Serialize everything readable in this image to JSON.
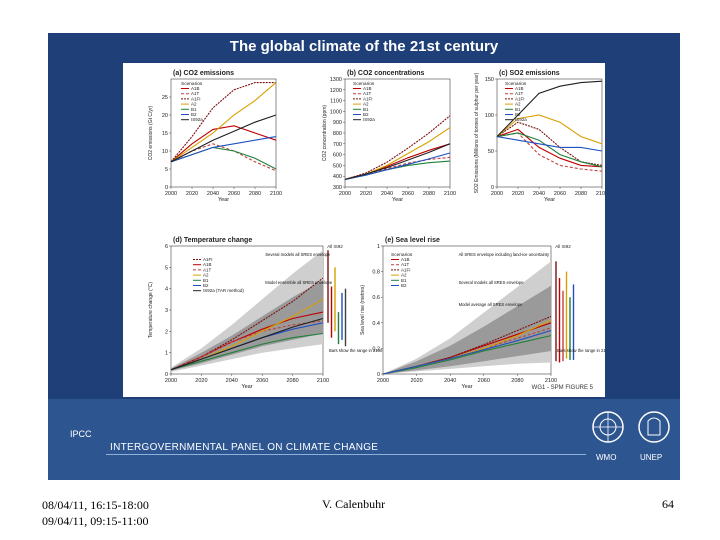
{
  "slide": {
    "title": "The global climate of the 21st century",
    "figure_ref": "WG1 - SPM FIGURE 5",
    "org_abbr": "IPCC",
    "org_name": "INTERGOVERNMENTAL PANEL ON CLIMATE CHANGE",
    "logo_left": "WMO",
    "logo_right": "UNEP"
  },
  "footer": {
    "dates_line1": "08/04/11, 16:15-18:00",
    "dates_line2": "09/04/11, 09:15-11:00",
    "author": "V. Calenbuhr",
    "page_number": "64"
  },
  "colors": {
    "A1B": "#c00000",
    "A1T": "#c04040",
    "A1FI": "#7a1010",
    "A2": "#d8a000",
    "B1": "#20803a",
    "B2": "#2050c0",
    "IS92a": "#202020"
  },
  "chart_data": [
    {
      "type": "line",
      "title": "(a) CO2 emissions",
      "ylabel": "CO2 emissions (Gt C/yr)",
      "xlabel": "Year",
      "ylim": [
        0,
        30
      ],
      "yticks": [
        0,
        5,
        10,
        15,
        20,
        25
      ],
      "x": [
        2000,
        2020,
        2040,
        2060,
        2080,
        2100
      ],
      "legend_title": "Scenarios",
      "series": [
        {
          "name": "A1B",
          "values": [
            7,
            12,
            16,
            17,
            15,
            13
          ],
          "color": "#c00000"
        },
        {
          "name": "A1T",
          "values": [
            7,
            10,
            12,
            10,
            7,
            4.5
          ],
          "color": "#c04040",
          "dash": "3,2"
        },
        {
          "name": "A1FI",
          "values": [
            7,
            14,
            22,
            27,
            29,
            29
          ],
          "color": "#7a1010",
          "dash": "2,1"
        },
        {
          "name": "A2",
          "values": [
            7,
            11,
            15,
            20,
            24,
            29
          ],
          "color": "#d8a000"
        },
        {
          "name": "B1",
          "values": [
            7,
            9,
            11,
            10,
            8,
            5
          ],
          "color": "#20803a"
        },
        {
          "name": "B2",
          "values": [
            7,
            9,
            11,
            12,
            13,
            14
          ],
          "color": "#2050c0"
        },
        {
          "name": "IS92a",
          "values": [
            7,
            10,
            13,
            15.5,
            18,
            20
          ],
          "color": "#202020"
        }
      ]
    },
    {
      "type": "line",
      "title": "(b) CO2 concentrations",
      "ylabel": "CO2 concentration (ppm)",
      "xlabel": "Year",
      "ylim": [
        300,
        1300
      ],
      "yticks": [
        300,
        400,
        500,
        600,
        700,
        800,
        900,
        1000,
        1100,
        1200,
        1300
      ],
      "x": [
        2000,
        2020,
        2040,
        2060,
        2080,
        2100
      ],
      "legend_title": "Scenarios",
      "series": [
        {
          "name": "A1B",
          "values": [
            370,
            420,
            490,
            570,
            640,
            700
          ],
          "color": "#c00000"
        },
        {
          "name": "A1T",
          "values": [
            370,
            415,
            470,
            520,
            555,
            575
          ],
          "color": "#c04040",
          "dash": "3,2"
        },
        {
          "name": "A1FI",
          "values": [
            370,
            430,
            530,
            660,
            800,
            960
          ],
          "color": "#7a1010",
          "dash": "2,1"
        },
        {
          "name": "A2",
          "values": [
            370,
            420,
            500,
            610,
            720,
            850
          ],
          "color": "#d8a000"
        },
        {
          "name": "B1",
          "values": [
            370,
            410,
            460,
            500,
            525,
            540
          ],
          "color": "#20803a"
        },
        {
          "name": "B2",
          "values": [
            370,
            410,
            460,
            510,
            560,
            615
          ],
          "color": "#2050c0"
        },
        {
          "name": "IS92a",
          "values": [
            370,
            420,
            480,
            550,
            620,
            700
          ],
          "color": "#202020"
        }
      ]
    },
    {
      "type": "line",
      "title": "(c) SO2 emissions",
      "ylabel": "SO2 Emissions (Millions of tonnes of sulphur per year)",
      "xlabel": "Year",
      "ylim": [
        0,
        150
      ],
      "yticks": [
        0,
        50,
        100,
        150
      ],
      "x": [
        2000,
        2020,
        2040,
        2060,
        2080,
        2100
      ],
      "legend_title": "Scenarios",
      "series": [
        {
          "name": "A1B",
          "values": [
            70,
            80,
            55,
            40,
            30,
            28
          ],
          "color": "#c00000"
        },
        {
          "name": "A1T",
          "values": [
            70,
            75,
            45,
            30,
            25,
            22
          ],
          "color": "#c04040",
          "dash": "3,2"
        },
        {
          "name": "A1FI",
          "values": [
            70,
            90,
            80,
            55,
            35,
            30
          ],
          "color": "#7a1010",
          "dash": "2,1"
        },
        {
          "name": "A2",
          "values": [
            70,
            95,
            100,
            90,
            70,
            60
          ],
          "color": "#d8a000"
        },
        {
          "name": "B1",
          "values": [
            70,
            75,
            65,
            45,
            35,
            28
          ],
          "color": "#20803a"
        },
        {
          "name": "B2",
          "values": [
            70,
            65,
            60,
            55,
            55,
            50
          ],
          "color": "#2050c0"
        },
        {
          "name": "IS92a",
          "values": [
            70,
            100,
            130,
            140,
            145,
            147
          ],
          "color": "#202020"
        }
      ]
    },
    {
      "type": "line",
      "title": "(d) Temperature change",
      "ylabel": "Temperature change (°C)",
      "xlabel": "Year",
      "ylim": [
        0,
        6
      ],
      "yticks": [
        0,
        1,
        2,
        3,
        4,
        5,
        6
      ],
      "x": [
        2000,
        2020,
        2040,
        2060,
        2080,
        2100
      ],
      "legend_title": "",
      "series": [
        {
          "name": "A1FI",
          "values": [
            0.2,
            0.8,
            1.6,
            2.5,
            3.4,
            4.5
          ],
          "color": "#7a1010",
          "dash": "2,1"
        },
        {
          "name": "A1B",
          "values": [
            0.2,
            0.8,
            1.5,
            2.1,
            2.6,
            2.9
          ],
          "color": "#c00000"
        },
        {
          "name": "A1T",
          "values": [
            0.2,
            0.8,
            1.5,
            2.0,
            2.3,
            2.5
          ],
          "color": "#c04040",
          "dash": "3,2"
        },
        {
          "name": "A2",
          "values": [
            0.2,
            0.7,
            1.3,
            2.0,
            2.7,
            3.5
          ],
          "color": "#d8a000"
        },
        {
          "name": "B1",
          "values": [
            0.2,
            0.6,
            1.0,
            1.4,
            1.7,
            1.9
          ],
          "color": "#20803a"
        },
        {
          "name": "B2",
          "values": [
            0.2,
            0.7,
            1.2,
            1.7,
            2.1,
            2.4
          ],
          "color": "#2050c0"
        },
        {
          "name": "IS92a (TAR method)",
          "values": [
            0.2,
            0.7,
            1.2,
            1.7,
            2.2,
            2.6
          ],
          "color": "#202020"
        }
      ],
      "envelope_outer": {
        "lower": [
          0.1,
          0.4,
          0.7,
          1.0,
          1.2,
          1.4
        ],
        "upper": [
          0.3,
          1.2,
          2.3,
          3.5,
          4.7,
          5.8
        ]
      },
      "envelope_inner": {
        "lower": [
          0.15,
          0.5,
          0.9,
          1.3,
          1.6,
          1.9
        ],
        "upper": [
          0.25,
          1.0,
          1.8,
          2.7,
          3.6,
          4.4
        ]
      },
      "annotations": [
        "Several models all SRES envelope",
        "Model ensemble all SRES envelope",
        "Bars show the range in 2100 produced by several models"
      ],
      "range_bars": [
        {
          "color": "#7a1010",
          "low": 2.4,
          "high": 5.8
        },
        {
          "color": "#c00000",
          "low": 1.7,
          "high": 4.1
        },
        {
          "color": "#d8a000",
          "low": 2.0,
          "high": 5.0
        },
        {
          "color": "#20803a",
          "low": 1.4,
          "high": 2.9
        },
        {
          "color": "#2050c0",
          "low": 1.6,
          "high": 3.8
        },
        {
          "color": "#404040",
          "low": 1.3,
          "high": 4.0
        }
      ],
      "bar_label": "All IS92"
    },
    {
      "type": "line",
      "title": "(e) Sea level rise",
      "ylabel": "Sea level rise (metres)",
      "xlabel": "Year",
      "ylim": [
        0,
        1.0
      ],
      "yticks": [
        0.0,
        0.2,
        0.4,
        0.6,
        0.8,
        1.0
      ],
      "x": [
        2000,
        2020,
        2040,
        2060,
        2080,
        2100
      ],
      "legend_title": "Scenarios",
      "series": [
        {
          "name": "A1B",
          "values": [
            0.0,
            0.06,
            0.13,
            0.22,
            0.31,
            0.4
          ],
          "color": "#c00000"
        },
        {
          "name": "A1T",
          "values": [
            0.0,
            0.06,
            0.12,
            0.2,
            0.28,
            0.36
          ],
          "color": "#c04040",
          "dash": "3,2"
        },
        {
          "name": "A1FI",
          "values": [
            0.0,
            0.06,
            0.13,
            0.23,
            0.34,
            0.45
          ],
          "color": "#7a1010",
          "dash": "2,1"
        },
        {
          "name": "A2",
          "values": [
            0.0,
            0.06,
            0.12,
            0.2,
            0.3,
            0.42
          ],
          "color": "#d8a000"
        },
        {
          "name": "B1",
          "values": [
            0.0,
            0.05,
            0.11,
            0.18,
            0.24,
            0.3
          ],
          "color": "#20803a"
        },
        {
          "name": "B2",
          "values": [
            0.0,
            0.06,
            0.12,
            0.19,
            0.26,
            0.34
          ],
          "color": "#2050c0"
        }
      ],
      "envelope_outer": {
        "lower": [
          0.0,
          0.02,
          0.04,
          0.06,
          0.08,
          0.09
        ],
        "upper": [
          0.0,
          0.12,
          0.28,
          0.48,
          0.68,
          0.88
        ]
      },
      "envelope_inner": {
        "lower": [
          0.0,
          0.03,
          0.06,
          0.1,
          0.14,
          0.18
        ],
        "upper": [
          0.0,
          0.1,
          0.22,
          0.37,
          0.53,
          0.69
        ]
      },
      "annotations": [
        "All SRES envelope including land-ice uncertainty",
        "Several models all SRES envelope",
        "Model average all SRES envelope",
        "Bars show the range in 2100 produced by several models"
      ],
      "range_bars": [
        {
          "color": "#7a1010",
          "low": 0.1,
          "high": 0.88
        },
        {
          "color": "#c00000",
          "low": 0.09,
          "high": 0.75
        },
        {
          "color": "#c04040",
          "low": 0.1,
          "high": 0.65
        },
        {
          "color": "#d8a000",
          "low": 0.12,
          "high": 0.8
        },
        {
          "color": "#20803a",
          "low": 0.11,
          "high": 0.6
        },
        {
          "color": "#2050c0",
          "low": 0.11,
          "high": 0.7
        }
      ],
      "bar_label": "All IS92"
    }
  ]
}
